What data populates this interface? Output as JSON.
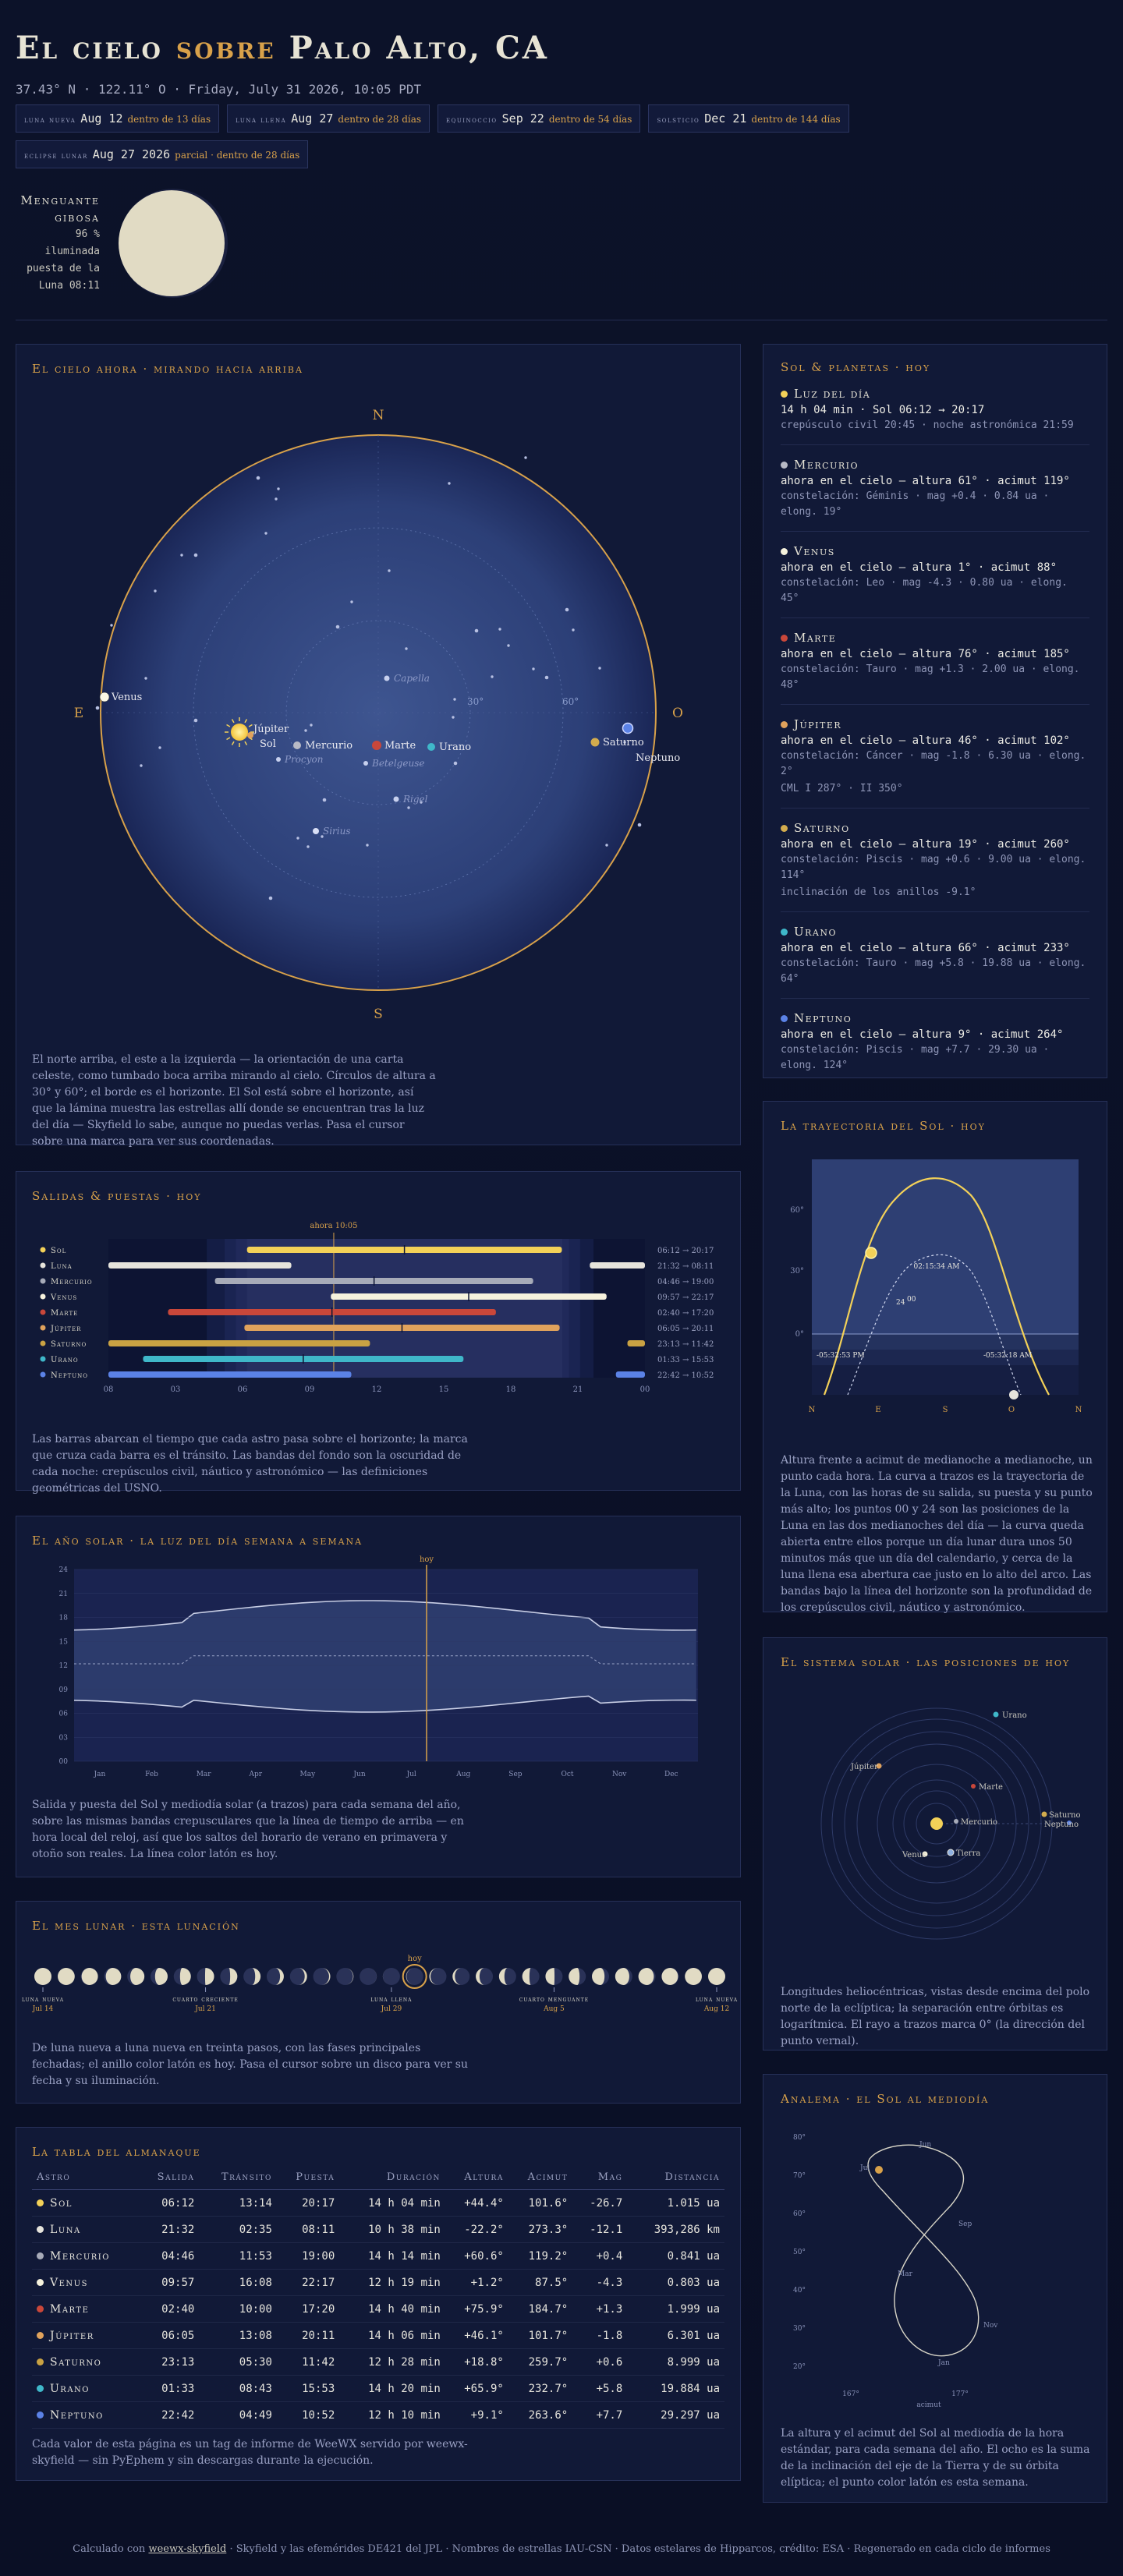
{
  "header": {
    "title_a": "El cielo",
    "title_b": "sobre",
    "title_c": "Palo Alto, CA",
    "coords": "37.43° N · 122.11° O · Friday, July 31 2026, 10:05 PDT"
  },
  "events": [
    {
      "label": "luna nueva",
      "date": "Aug 12",
      "rel": "dentro de 13 días"
    },
    {
      "label": "luna llena",
      "date": "Aug 27",
      "rel": "dentro de 28 días"
    },
    {
      "label": "equinoccio",
      "date": "Sep 22",
      "rel": "dentro de 54 días"
    },
    {
      "label": "solsticio",
      "date": "Dec 21",
      "rel": "dentro de 144 días"
    },
    {
      "label": "eclipse lunar",
      "date": "Aug 27 2026",
      "rel": "parcial · dentro de 28 días"
    }
  ],
  "moon": {
    "phase": "Menguante gibosa",
    "illum": "96 %",
    "illum_label": "iluminada",
    "set_label": "puesta de la",
    "set": "Luna 08:11",
    "illum_frac": 0.96
  },
  "sky": {
    "title": "El cielo ahora · mirando hacia arriba",
    "dirs": {
      "n": "N",
      "s": "S",
      "e": "E",
      "w": "O"
    },
    "alt30": "30°",
    "alt60": "60°",
    "stars_named": [
      "Capella",
      "Betelgeuse",
      "Procyon",
      "Rigel",
      "Sirius"
    ],
    "planet_labels": {
      "venus": "Venus",
      "jupiter": "Júpiter",
      "sun": "Sol",
      "mercury": "Mercurio",
      "mars": "Marte",
      "uranus": "Urano",
      "saturn": "Saturno",
      "neptune": "Neptuno"
    },
    "note": "El norte arriba, el este a la izquierda — la orientación de una carta celeste, como tumbado boca arriba mirando al cielo. Círculos de altura a 30° y 60°; el borde es el horizonte. El Sol está sobre el horizonte, así que la lámina muestra las estrellas allí donde se encuentran tras la luz del día — Skyfield lo sabe, aunque no puedas verlas. Pasa el cursor sobre una marca para ver sus coordenadas."
  },
  "bodies": {
    "title": "Sol & planetas · hoy",
    "items": [
      {
        "name": "Luz del día",
        "line": "14 h 04 min · Sol 06:12 → 20:17",
        "sub": "crepúsculo civil 20:45 · noche astronómica 21:59",
        "color": "#f3d158"
      },
      {
        "name": "Mercurio",
        "line": "ahora en el cielo — altura 61° · acimut 119°",
        "sub": "constelación: Géminis · mag +0.4 · 0.84 ua · elong. 19°",
        "color": "#b8bac6"
      },
      {
        "name": "Venus",
        "line": "ahora en el cielo — altura 1° · acimut 88°",
        "sub": "constelación: Leo · mag -4.3 · 0.80 ua · elong. 45°",
        "color": "#f5f1dc"
      },
      {
        "name": "Marte",
        "line": "ahora en el cielo — altura 76° · acimut 185°",
        "sub": "constelación: Tauro · mag +1.3 · 2.00 ua · elong. 48°",
        "color": "#c9473a"
      },
      {
        "name": "Júpiter",
        "line": "ahora en el cielo — altura 46° · acimut 102°",
        "sub": "constelación: Cáncer · mag -1.8 · 6.30 ua · elong. 2°",
        "sub2": "CML I 287° · II 350°",
        "color": "#e0a25c"
      },
      {
        "name": "Saturno",
        "line": "ahora en el cielo — altura 19° · acimut 260°",
        "sub": "constelación: Piscis · mag +0.6 · 9.00 ua · elong. 114°",
        "sub2": "inclinación de los anillos -9.1°",
        "color": "#d3ac4e"
      },
      {
        "name": "Urano",
        "line": "ahora en el cielo — altura 66° · acimut 233°",
        "sub": "constelación: Tauro · mag +5.8 · 19.88 ua · elong. 64°",
        "color": "#3fb7c9"
      },
      {
        "name": "Neptuno",
        "line": "ahora en el cielo — altura 9° · acimut 264°",
        "sub": "constelación: Piscis · mag +7.7 · 29.30 ua · elong. 124°",
        "color": "#5b82e6"
      }
    ]
  },
  "rise": {
    "title": "Salidas & puestas · hoy",
    "now_label": "ahora 10:05",
    "hour_ticks": [
      "08",
      "03",
      "06",
      "09",
      "12",
      "15",
      "18",
      "21",
      "00"
    ],
    "rows": [
      {
        "name": "Sol",
        "times": "06:12 → 20:17",
        "color": "#f3d158"
      },
      {
        "name": "Luna",
        "times": "21:32 → 08:11",
        "color": "#e6e4dc"
      },
      {
        "name": "Mercurio",
        "times": "04:46 → 19:00",
        "color": "#a7abb8"
      },
      {
        "name": "Venus",
        "times": "09:57 → 22:17",
        "color": "#f6f2dd"
      },
      {
        "name": "Marte",
        "times": "02:40 → 17:20",
        "color": "#c9473a"
      },
      {
        "name": "Júpiter",
        "times": "06:05 → 20:11",
        "color": "#e0a25c"
      },
      {
        "name": "Saturno",
        "times": "23:13 → 11:42",
        "color": "#c9a243"
      },
      {
        "name": "Urano",
        "times": "01:33 → 15:53",
        "color": "#3fb7c9"
      },
      {
        "name": "Neptuno",
        "times": "22:42 → 10:52",
        "color": "#5b82e6"
      }
    ],
    "note": "Las barras abarcan el tiempo que cada astro pasa sobre el horizonte; la marca que cruza cada barra es el tránsito. Las bandas del fondo son la oscuridad de cada noche: crepúsculos civil, náutico y astronómico — las definiciones geométricas del USNO."
  },
  "year": {
    "title": "El año solar · la luz del día semana a semana",
    "today_label": "hoy",
    "y_ticks": [
      "24",
      "21",
      "18",
      "15",
      "12",
      "09",
      "06",
      "03",
      "00"
    ],
    "months": [
      "Jan",
      "Feb",
      "Mar",
      "Apr",
      "May",
      "Jun",
      "Jul",
      "Aug",
      "Sep",
      "Oct",
      "Nov",
      "Dec"
    ],
    "note": "Salida y puesta del Sol y mediodía solar (a trazos) para cada semana del año, sobre las mismas bandas crepusculares que la línea de tiempo de arriba — en hora local del reloj, así que los saltos del horario de verano en primavera y otoño son reales. La línea color latón es hoy."
  },
  "lunar": {
    "title": "El mes lunar · esta lunación",
    "today_label": "hoy",
    "labels": [
      {
        "name": "luna nueva",
        "date": "Jul 14"
      },
      {
        "name": "cuarto creciente",
        "date": "Jul 21"
      },
      {
        "name": "luna llena",
        "date": "Jul 29"
      },
      {
        "name": "cuarto menguante",
        "date": "Aug 5"
      },
      {
        "name": "luna nueva",
        "date": "Aug 12"
      }
    ],
    "note": "De luna nueva a luna nueva en treinta pasos, con las fases principales fechadas; el anillo color latón es hoy. Pasa el cursor sobre un disco para ver su fecha y su iluminación."
  },
  "almanac": {
    "title": "La tabla del almanaque",
    "headers": [
      "Astro",
      "Salida",
      "Tránsito",
      "Puesta",
      "Duración",
      "Altura",
      "Acimut",
      "Mag",
      "Distancia"
    ],
    "rows": [
      {
        "name": "Sol",
        "color": "#f3d158",
        "cells": [
          "06:12",
          "13:14",
          "20:17",
          "14 h 04 min",
          "+44.4°",
          "101.6°",
          "-26.7",
          "1.015 ua"
        ]
      },
      {
        "name": "Luna",
        "color": "#e6e4dc",
        "cells": [
          "21:32",
          "02:35",
          "08:11",
          "10 h 38 min",
          "-22.2°",
          "273.3°",
          "-12.1",
          "393,286 km"
        ]
      },
      {
        "name": "Mercurio",
        "color": "#a7abb8",
        "cells": [
          "04:46",
          "11:53",
          "19:00",
          "14 h 14 min",
          "+60.6°",
          "119.2°",
          "+0.4",
          "0.841 ua"
        ]
      },
      {
        "name": "Venus",
        "color": "#f6f2dd",
        "cells": [
          "09:57",
          "16:08",
          "22:17",
          "12 h 19 min",
          "+1.2°",
          "87.5°",
          "-4.3",
          "0.803 ua"
        ]
      },
      {
        "name": "Marte",
        "color": "#c9473a",
        "cells": [
          "02:40",
          "10:00",
          "17:20",
          "14 h 40 min",
          "+75.9°",
          "184.7°",
          "+1.3",
          "1.999 ua"
        ]
      },
      {
        "name": "Júpiter",
        "color": "#e0a25c",
        "cells": [
          "06:05",
          "13:08",
          "20:11",
          "14 h 06 min",
          "+46.1°",
          "101.7°",
          "-1.8",
          "6.301 ua"
        ]
      },
      {
        "name": "Saturno",
        "color": "#c9a243",
        "cells": [
          "23:13",
          "05:30",
          "11:42",
          "12 h 28 min",
          "+18.8°",
          "259.7°",
          "+0.6",
          "8.999 ua"
        ]
      },
      {
        "name": "Urano",
        "color": "#3fb7c9",
        "cells": [
          "01:33",
          "08:43",
          "15:53",
          "14 h 20 min",
          "+65.9°",
          "232.7°",
          "+5.8",
          "19.884 ua"
        ]
      },
      {
        "name": "Neptuno",
        "color": "#5b82e6",
        "cells": [
          "22:42",
          "04:49",
          "10:52",
          "12 h 10 min",
          "+9.1°",
          "263.6°",
          "+7.7",
          "29.297 ua"
        ]
      }
    ],
    "note": "Cada valor de esta página es un tag de informe de WeeWX servido por weewx-skyfield — sin PyEphem y sin descargas durante la ejecución."
  },
  "sunpath": {
    "title": "La trayectoria del Sol · hoy",
    "y_ticks": [
      "60°",
      "30°",
      "0°"
    ],
    "x_ticks": [
      "N",
      "E",
      "S",
      "O",
      "N"
    ],
    "labels": {
      "noon": "02:15:34 AM",
      "rise": "-05:32:53 PM",
      "set": "-05:32:18 AM",
      "h24": "24",
      "h00": "00"
    },
    "note": "Altura frente a acimut de medianoche a medianoche, un punto cada hora. La curva a trazos es la trayectoria de la Luna, con las horas de su salida, su puesta y su punto más alto; los puntos 00 y 24 son las posiciones de la Luna en las dos medianoches del día — la curva queda abierta entre ellos porque un día lunar dura unos 50 minutos más que un día del calendario, y cerca de la luna llena esa abertura cae justo en lo alto del arco. Las bandas bajo la línea del horizonte son la profundidad de los crepúsculos civil, náutico y astronómico."
  },
  "solar": {
    "title": "El sistema solar · las posiciones de hoy",
    "labels": {
      "uranus": "Urano",
      "jupiter": "Júpiter",
      "mars": "Marte",
      "mercury": "Mercurio",
      "saturn": "Saturno",
      "neptune": "Neptuno",
      "venus": "Venus",
      "earth": "Tierra"
    },
    "note": "Longitudes heliocéntricas, vistas desde encima del polo norte de la eclíptica; la separación entre órbitas es logarítmica. El rayo a trazos marca 0° (la dirección del punto vernal)."
  },
  "analemma": {
    "title": "Analema · el Sol al mediodía",
    "y_ticks": [
      "80°",
      "70°",
      "60°",
      "50°",
      "40°",
      "30°",
      "20°"
    ],
    "x_ticks": [
      "167°",
      "177°"
    ],
    "xlabel": "acimut",
    "months": [
      "Jun",
      "Jul",
      "Sep",
      "Mar",
      "Jan",
      "Nov"
    ],
    "note": "La altura y el acimut del Sol al mediodía de la hora estándar, para cada semana del año. El ocho es la suma de la inclinación del eje de la Tierra y de su órbita elíptica; el punto color latón es esta semana."
  },
  "footer": {
    "a": "Calculado con",
    "link": "weewx-skyfield",
    "b": "· Skyfield y las efemérides DE421 del JPL · Nombres de estrellas IAU-CSN · Datos estelares de Hipparcos, crédito: ESA · Regenerado en cada ciclo de informes"
  }
}
